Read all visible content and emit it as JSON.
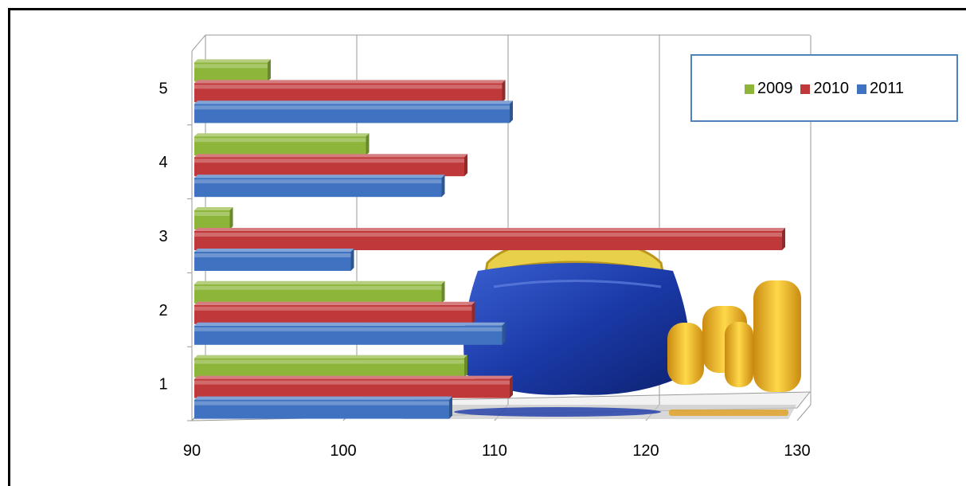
{
  "chart_data": {
    "type": "bar",
    "orientation": "horizontal",
    "style": "3d-clustered",
    "title": "",
    "xlabel": "",
    "ylabel": "",
    "categories": [
      "1",
      "2",
      "3",
      "4",
      "5"
    ],
    "series": [
      {
        "name": "2009",
        "color": "#8db53a",
        "values": [
          108,
          106.5,
          92.5,
          101.5,
          95
        ]
      },
      {
        "name": "2010",
        "color": "#c0393a",
        "values": [
          111,
          108.5,
          129,
          108,
          110.5
        ]
      },
      {
        "name": "2011",
        "color": "#3f72c0",
        "values": [
          107,
          110.5,
          100.5,
          106.5,
          111
        ]
      }
    ],
    "xlim": [
      90,
      130
    ],
    "xticks": [
      "90",
      "100",
      "110",
      "120",
      "130"
    ],
    "grid": true,
    "legend_position": "top-right",
    "background_picture": "purse-and-coins"
  }
}
